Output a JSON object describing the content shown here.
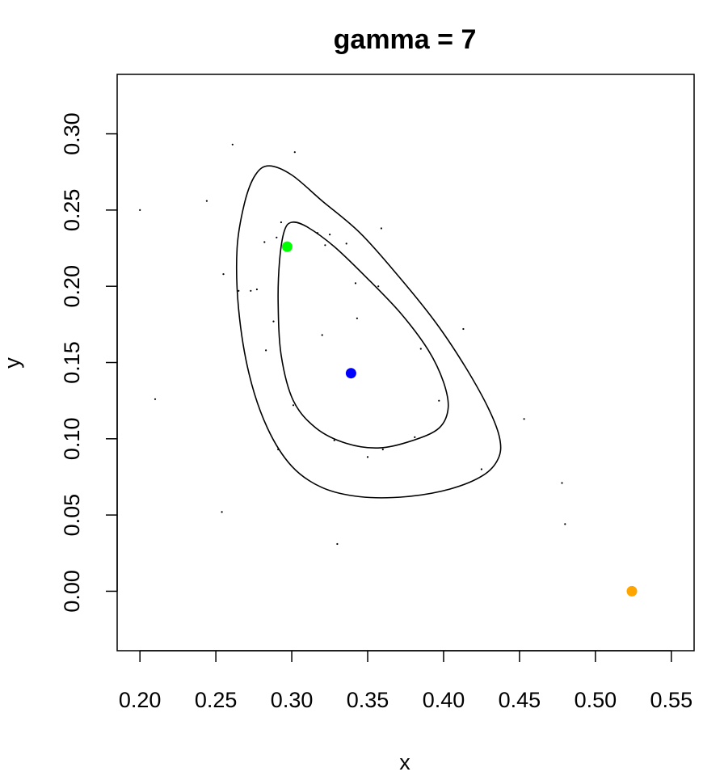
{
  "chart_data": {
    "type": "scatter",
    "title": "gamma = 7",
    "xlabel": "x",
    "ylabel": "y",
    "xlim": [
      0.185,
      0.565
    ],
    "ylim": [
      -0.039,
      0.339
    ],
    "x_ticks": [
      "0.20",
      "0.25",
      "0.30",
      "0.35",
      "0.40",
      "0.45",
      "0.50",
      "0.55"
    ],
    "y_ticks": [
      "0.00",
      "0.05",
      "0.10",
      "0.15",
      "0.20",
      "0.25",
      "0.30"
    ],
    "grid": false,
    "legend": "none",
    "small_points": [
      [
        0.2,
        0.25
      ],
      [
        0.21,
        0.126
      ],
      [
        0.244,
        0.256
      ],
      [
        0.254,
        0.052
      ],
      [
        0.255,
        0.208
      ],
      [
        0.261,
        0.293
      ],
      [
        0.265,
        0.197
      ],
      [
        0.273,
        0.197
      ],
      [
        0.277,
        0.198
      ],
      [
        0.282,
        0.229
      ],
      [
        0.283,
        0.158
      ],
      [
        0.288,
        0.177
      ],
      [
        0.29,
        0.232
      ],
      [
        0.291,
        0.093
      ],
      [
        0.293,
        0.242
      ],
      [
        0.301,
        0.122
      ],
      [
        0.302,
        0.288
      ],
      [
        0.317,
        0.235
      ],
      [
        0.32,
        0.168
      ],
      [
        0.322,
        0.227
      ],
      [
        0.325,
        0.234
      ],
      [
        0.328,
        0.099
      ],
      [
        0.33,
        0.031
      ],
      [
        0.336,
        0.228
      ],
      [
        0.342,
        0.202
      ],
      [
        0.343,
        0.179
      ],
      [
        0.35,
        0.088
      ],
      [
        0.357,
        0.2
      ],
      [
        0.359,
        0.238
      ],
      [
        0.36,
        0.093
      ],
      [
        0.381,
        0.101
      ],
      [
        0.385,
        0.159
      ],
      [
        0.397,
        0.125
      ],
      [
        0.413,
        0.172
      ],
      [
        0.425,
        0.08
      ],
      [
        0.453,
        0.113
      ],
      [
        0.478,
        0.071
      ],
      [
        0.48,
        0.044
      ]
    ],
    "highlight_points": [
      {
        "x": 0.297,
        "y": 0.226,
        "color": "#00ff00"
      },
      {
        "x": 0.339,
        "y": 0.143,
        "color": "#0000ff"
      },
      {
        "x": 0.524,
        "y": 0.0,
        "color": "#ffa500"
      }
    ],
    "contours": [
      {
        "name": "outer",
        "points": [
          [
            0.285,
            0.279
          ],
          [
            0.3,
            0.273
          ],
          [
            0.32,
            0.256
          ],
          [
            0.345,
            0.235
          ],
          [
            0.37,
            0.207
          ],
          [
            0.395,
            0.176
          ],
          [
            0.415,
            0.146
          ],
          [
            0.43,
            0.119
          ],
          [
            0.437,
            0.1
          ],
          [
            0.436,
            0.087
          ],
          [
            0.426,
            0.076
          ],
          [
            0.404,
            0.067
          ],
          [
            0.375,
            0.062
          ],
          [
            0.345,
            0.062
          ],
          [
            0.32,
            0.068
          ],
          [
            0.3,
            0.082
          ],
          [
            0.284,
            0.107
          ],
          [
            0.272,
            0.142
          ],
          [
            0.265,
            0.185
          ],
          [
            0.264,
            0.225
          ],
          [
            0.269,
            0.255
          ],
          [
            0.276,
            0.273
          ]
        ]
      },
      {
        "name": "inner",
        "points": [
          [
            0.3,
            0.242
          ],
          [
            0.31,
            0.239
          ],
          [
            0.328,
            0.226
          ],
          [
            0.35,
            0.205
          ],
          [
            0.372,
            0.182
          ],
          [
            0.39,
            0.158
          ],
          [
            0.4,
            0.137
          ],
          [
            0.403,
            0.12
          ],
          [
            0.397,
            0.107
          ],
          [
            0.38,
            0.099
          ],
          [
            0.358,
            0.094
          ],
          [
            0.336,
            0.097
          ],
          [
            0.316,
            0.107
          ],
          [
            0.301,
            0.125
          ],
          [
            0.293,
            0.155
          ],
          [
            0.291,
            0.19
          ],
          [
            0.292,
            0.217
          ],
          [
            0.295,
            0.236
          ]
        ]
      }
    ]
  }
}
